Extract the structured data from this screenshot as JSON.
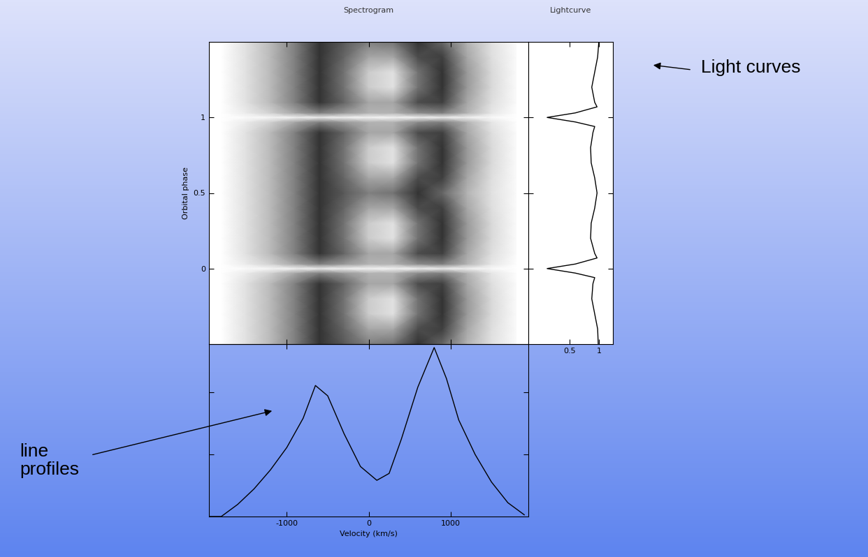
{
  "chart_data": [
    {
      "type": "heatmap",
      "title": "Spectrogram",
      "ylabel": "Orbital phase",
      "x": [
        -1800,
        -1500,
        -1200,
        -900,
        -600,
        -300,
        0,
        300,
        600,
        900,
        1200,
        1500,
        1800
      ],
      "y": [
        -0.5,
        -0.4,
        -0.3,
        -0.2,
        -0.1,
        -0.03,
        0,
        0.03,
        0.1,
        0.2,
        0.3,
        0.4,
        0.5,
        0.6,
        0.7,
        0.8,
        0.9,
        0.97,
        1,
        1.03,
        1.1,
        1.2,
        1.3,
        1.4,
        1.5
      ],
      "cells": [
        [
          0.0,
          0.12,
          0.27,
          0.5,
          0.8,
          0.65,
          0.5,
          0.55,
          0.8,
          0.6,
          0.3,
          0.12,
          0.02
        ],
        [
          0.0,
          0.12,
          0.27,
          0.5,
          0.8,
          0.6,
          0.35,
          0.35,
          0.7,
          0.75,
          0.35,
          0.13,
          0.02
        ],
        [
          0.0,
          0.12,
          0.27,
          0.5,
          0.8,
          0.55,
          0.2,
          0.12,
          0.55,
          0.8,
          0.4,
          0.15,
          0.02
        ],
        [
          0.0,
          0.12,
          0.27,
          0.5,
          0.8,
          0.55,
          0.2,
          0.12,
          0.55,
          0.8,
          0.4,
          0.15,
          0.02
        ],
        [
          0.0,
          0.12,
          0.27,
          0.5,
          0.8,
          0.6,
          0.35,
          0.35,
          0.7,
          0.75,
          0.35,
          0.13,
          0.02
        ],
        [
          0.0,
          0.08,
          0.18,
          0.35,
          0.5,
          0.4,
          0.3,
          0.3,
          0.45,
          0.5,
          0.3,
          0.1,
          0.01
        ],
        [
          0.0,
          0.02,
          0.04,
          0.06,
          0.08,
          0.06,
          0.05,
          0.05,
          0.06,
          0.08,
          0.06,
          0.03,
          0.0
        ],
        [
          0.0,
          0.08,
          0.18,
          0.35,
          0.5,
          0.4,
          0.3,
          0.3,
          0.45,
          0.5,
          0.3,
          0.1,
          0.01
        ],
        [
          0.0,
          0.12,
          0.27,
          0.5,
          0.8,
          0.6,
          0.35,
          0.35,
          0.7,
          0.75,
          0.35,
          0.13,
          0.02
        ],
        [
          0.0,
          0.12,
          0.27,
          0.5,
          0.8,
          0.55,
          0.2,
          0.12,
          0.55,
          0.8,
          0.4,
          0.15,
          0.02
        ],
        [
          0.0,
          0.12,
          0.27,
          0.5,
          0.8,
          0.55,
          0.2,
          0.12,
          0.55,
          0.8,
          0.4,
          0.15,
          0.02
        ],
        [
          0.0,
          0.12,
          0.27,
          0.5,
          0.8,
          0.6,
          0.35,
          0.35,
          0.7,
          0.75,
          0.35,
          0.13,
          0.02
        ],
        [
          0.0,
          0.12,
          0.27,
          0.5,
          0.8,
          0.65,
          0.5,
          0.55,
          0.8,
          0.6,
          0.3,
          0.12,
          0.02
        ],
        [
          0.0,
          0.12,
          0.27,
          0.5,
          0.8,
          0.6,
          0.35,
          0.35,
          0.7,
          0.75,
          0.35,
          0.13,
          0.02
        ],
        [
          0.0,
          0.12,
          0.27,
          0.5,
          0.8,
          0.55,
          0.2,
          0.12,
          0.55,
          0.8,
          0.4,
          0.15,
          0.02
        ],
        [
          0.0,
          0.12,
          0.27,
          0.5,
          0.8,
          0.55,
          0.2,
          0.12,
          0.55,
          0.8,
          0.4,
          0.15,
          0.02
        ],
        [
          0.0,
          0.12,
          0.27,
          0.5,
          0.8,
          0.6,
          0.35,
          0.35,
          0.7,
          0.75,
          0.35,
          0.13,
          0.02
        ],
        [
          0.0,
          0.08,
          0.18,
          0.35,
          0.5,
          0.4,
          0.3,
          0.3,
          0.45,
          0.5,
          0.3,
          0.1,
          0.01
        ],
        [
          0.0,
          0.02,
          0.04,
          0.06,
          0.08,
          0.06,
          0.05,
          0.05,
          0.06,
          0.08,
          0.06,
          0.03,
          0.0
        ],
        [
          0.0,
          0.08,
          0.18,
          0.35,
          0.5,
          0.4,
          0.3,
          0.3,
          0.45,
          0.5,
          0.3,
          0.1,
          0.01
        ],
        [
          0.0,
          0.12,
          0.27,
          0.5,
          0.8,
          0.6,
          0.35,
          0.35,
          0.7,
          0.75,
          0.35,
          0.13,
          0.02
        ],
        [
          0.0,
          0.12,
          0.27,
          0.5,
          0.8,
          0.55,
          0.2,
          0.12,
          0.55,
          0.8,
          0.4,
          0.15,
          0.02
        ],
        [
          0.0,
          0.12,
          0.27,
          0.5,
          0.8,
          0.55,
          0.2,
          0.12,
          0.55,
          0.8,
          0.4,
          0.15,
          0.02
        ],
        [
          0.0,
          0.12,
          0.27,
          0.5,
          0.8,
          0.6,
          0.35,
          0.35,
          0.7,
          0.75,
          0.35,
          0.13,
          0.02
        ],
        [
          0.0,
          0.12,
          0.27,
          0.5,
          0.8,
          0.65,
          0.5,
          0.55,
          0.8,
          0.6,
          0.3,
          0.12,
          0.02
        ]
      ],
      "color_range": [
        0,
        1
      ],
      "xlim": [
        -1950,
        1950
      ],
      "ylim": [
        -0.5,
        1.5
      ],
      "xticks": [
        -1000,
        0,
        1000
      ],
      "yticks": [
        0,
        0.5,
        1
      ],
      "tick_labels": "y"
    },
    {
      "type": "line",
      "title": "Lightcurve",
      "annotation": "Light curves",
      "color": "#000000",
      "y": [
        -0.5,
        -0.4,
        -0.3,
        -0.2,
        -0.1,
        -0.06,
        -0.03,
        0,
        0.03,
        0.07,
        0.1,
        0.2,
        0.3,
        0.4,
        0.5,
        0.6,
        0.7,
        0.8,
        0.9,
        0.94,
        0.97,
        1.0,
        1.03,
        1.07,
        1.1,
        1.2,
        1.3,
        1.4,
        1.5
      ],
      "x": [
        0.99,
        0.98,
        0.93,
        0.88,
        0.9,
        0.93,
        0.6,
        0.12,
        0.6,
        0.97,
        0.93,
        0.86,
        0.87,
        0.93,
        0.97,
        0.93,
        0.87,
        0.86,
        0.9,
        0.93,
        0.6,
        0.12,
        0.6,
        0.97,
        0.93,
        0.88,
        0.93,
        0.98,
        1.0
      ],
      "xlim": [
        -0.2,
        1.24
      ],
      "ylim": [
        -0.5,
        1.5
      ],
      "xticks": [
        0.5,
        1
      ],
      "yticks": [
        0,
        0.5,
        1
      ],
      "tick_labels": "x"
    },
    {
      "type": "line",
      "xlabel": "Velocity (km/s)",
      "annotation": "line\nprofiles",
      "color": "#000000",
      "x": [
        -1950,
        -1800,
        -1600,
        -1400,
        -1200,
        -1000,
        -800,
        -650,
        -500,
        -300,
        -100,
        100,
        250,
        400,
        600,
        800,
        950,
        1100,
        1300,
        1500,
        1700,
        1900
      ],
      "values": [
        0.0,
        0.0,
        0.07,
        0.16,
        0.27,
        0.4,
        0.57,
        0.76,
        0.7,
        0.48,
        0.29,
        0.21,
        0.25,
        0.45,
        0.75,
        0.98,
        0.8,
        0.56,
        0.36,
        0.2,
        0.08,
        0.01
      ],
      "xlim": [
        -1950,
        1950
      ],
      "ylim": [
        0,
        1
      ],
      "xticks": [
        -1000,
        0,
        1000
      ],
      "yticks": [
        0.36,
        0.72
      ],
      "tick_labels": "x"
    }
  ]
}
